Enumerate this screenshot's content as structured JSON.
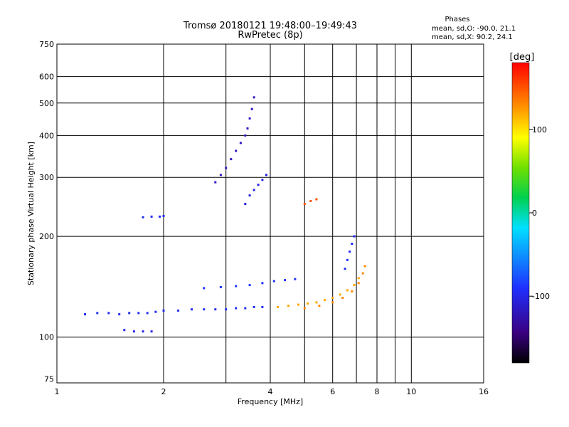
{
  "chart_data": {
    "type": "scatter",
    "title": "Tromsø 20180121 19:48:00–19:49:43",
    "subtitle": "RwPretec (8p)",
    "xlabel": "Frequency [MHz]",
    "ylabel": "Stationary phase Virtual Height [km]",
    "x_scale": "log",
    "y_scale": "log",
    "xlim": [
      1,
      16
    ],
    "ylim": [
      73,
      750
    ],
    "x_ticks": [
      1,
      2,
      4,
      6,
      8,
      10,
      16
    ],
    "x_tick_labels": [
      "1",
      "2",
      "4",
      "6",
      "8",
      "10",
      "16"
    ],
    "x_grid": [
      1,
      2,
      3,
      4,
      5,
      6,
      7,
      8,
      9,
      10,
      16
    ],
    "y_ticks": [
      75,
      100,
      200,
      300,
      400,
      500,
      600,
      750
    ],
    "y_tick_labels": [
      "75",
      "100",
      "200",
      "300",
      "400",
      "500",
      "600",
      "750"
    ],
    "y_grid": [
      100,
      200,
      300,
      400,
      500,
      600
    ],
    "grid": true,
    "phase_stats": {
      "heading": "Phases",
      "line_o": "mean, sd,O: -90.0, 21.1",
      "line_x": "mean, sd,X:  90.2, 24.1"
    },
    "colorbar": {
      "label": "[deg]",
      "range": [
        -180,
        180
      ],
      "ticks": [
        100,
        0,
        -100
      ],
      "tick_labels": [
        "100",
        "0",
        "-100"
      ]
    },
    "traces": [
      {
        "name": "",
        "phase": -95,
        "points": [
          [
            1.2,
            117
          ],
          [
            1.3,
            118
          ],
          [
            1.4,
            118
          ],
          [
            1.5,
            117
          ],
          [
            1.6,
            118
          ],
          [
            1.7,
            118
          ],
          [
            1.8,
            118
          ],
          [
            1.9,
            119
          ],
          [
            2.0,
            120
          ],
          [
            2.2,
            120
          ],
          [
            2.4,
            121
          ],
          [
            2.6,
            121
          ],
          [
            2.8,
            121
          ],
          [
            3.0,
            121
          ],
          [
            3.2,
            122
          ],
          [
            3.4,
            122
          ],
          [
            3.6,
            123
          ],
          [
            3.8,
            123
          ]
        ]
      },
      {
        "name": "",
        "phase": 120,
        "points": [
          [
            4.2,
            123
          ],
          [
            4.5,
            124
          ],
          [
            4.8,
            125
          ],
          [
            5.1,
            126
          ],
          [
            5.4,
            127
          ],
          [
            5.7,
            129
          ],
          [
            6.0,
            131
          ],
          [
            6.3,
            134
          ],
          [
            6.6,
            138
          ],
          [
            6.9,
            143
          ],
          [
            7.1,
            150
          ]
        ]
      },
      {
        "name": "",
        "phase": 130,
        "points": [
          [
            5.0,
            122
          ],
          [
            5.5,
            124
          ],
          [
            6.0,
            127
          ],
          [
            6.4,
            131
          ],
          [
            6.8,
            137
          ],
          [
            7.1,
            145
          ],
          [
            7.3,
            155
          ],
          [
            7.4,
            163
          ]
        ]
      },
      {
        "name": "",
        "phase": -90,
        "points": [
          [
            2.6,
            140
          ],
          [
            2.9,
            141
          ],
          [
            3.2,
            142
          ],
          [
            3.5,
            143
          ],
          [
            3.8,
            145
          ],
          [
            4.1,
            147
          ],
          [
            4.4,
            148
          ],
          [
            4.7,
            149
          ]
        ]
      },
      {
        "name": "",
        "phase": -100,
        "points": [
          [
            1.55,
            105
          ],
          [
            1.65,
            104
          ],
          [
            1.75,
            104
          ],
          [
            1.85,
            104
          ]
        ]
      },
      {
        "name": "",
        "phase": -95,
        "points": [
          [
            1.75,
            228
          ],
          [
            1.85,
            229
          ],
          [
            1.95,
            229
          ],
          [
            2.0,
            230
          ]
        ]
      },
      {
        "name": "",
        "phase": -115,
        "points": [
          [
            2.8,
            290
          ],
          [
            2.9,
            305
          ],
          [
            3.0,
            320
          ],
          [
            3.1,
            340
          ],
          [
            3.2,
            360
          ],
          [
            3.3,
            380
          ],
          [
            3.4,
            400
          ],
          [
            3.45,
            420
          ],
          [
            3.5,
            450
          ],
          [
            3.55,
            480
          ],
          [
            3.6,
            520
          ]
        ]
      },
      {
        "name": "",
        "phase": -105,
        "points": [
          [
            3.4,
            250
          ],
          [
            3.5,
            265
          ],
          [
            3.6,
            275
          ],
          [
            3.7,
            285
          ],
          [
            3.8,
            295
          ],
          [
            3.9,
            305
          ]
        ]
      },
      {
        "name": "",
        "phase": -95,
        "points": [
          [
            6.5,
            160
          ],
          [
            6.6,
            170
          ],
          [
            6.7,
            180
          ],
          [
            6.8,
            190
          ],
          [
            6.9,
            200
          ]
        ]
      },
      {
        "name": "",
        "phase": 150,
        "points": [
          [
            5.0,
            250
          ],
          [
            5.2,
            255
          ],
          [
            5.4,
            258
          ]
        ]
      }
    ]
  }
}
